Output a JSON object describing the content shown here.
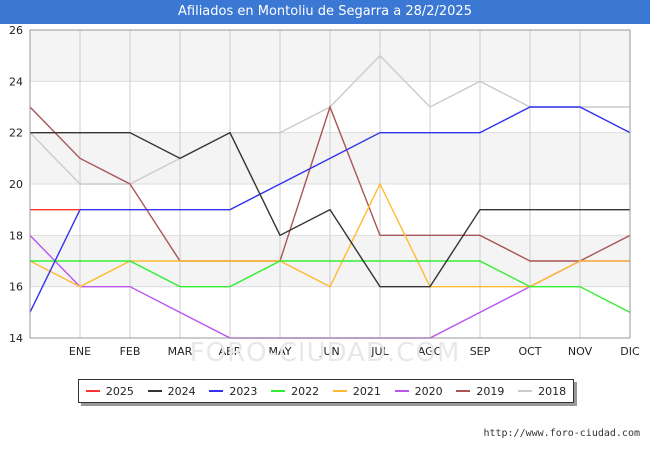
{
  "chart_data": {
    "type": "line",
    "title": "Afiliados en Montoliu de Segarra a 28/2/2025",
    "categories": [
      "",
      "ENE",
      "FEB",
      "MAR",
      "ABR",
      "MAY",
      "JUN",
      "JUL",
      "AGO",
      "SEP",
      "OCT",
      "NOV",
      "DIC"
    ],
    "ylim": [
      14,
      26
    ],
    "yticks": [
      14,
      16,
      18,
      20,
      22,
      24,
      26
    ],
    "series": [
      {
        "name": "2025",
        "color": "#ff3333",
        "values": [
          19,
          19,
          null,
          null,
          null,
          null,
          null,
          null,
          null,
          null,
          null,
          null,
          null
        ]
      },
      {
        "name": "2024",
        "color": "#333333",
        "values": [
          22,
          22,
          22,
          21,
          22,
          18,
          19,
          16,
          16,
          19,
          19,
          19,
          19
        ]
      },
      {
        "name": "2023",
        "color": "#3333ee",
        "values": [
          15,
          19,
          19,
          19,
          19,
          20,
          21,
          22,
          22,
          22,
          23,
          23,
          22
        ]
      },
      {
        "name": "2022",
        "color": "#33ee33",
        "values": [
          17,
          17,
          17,
          16,
          16,
          17,
          17,
          17,
          17,
          17,
          16,
          16,
          15
        ]
      },
      {
        "name": "2021",
        "color": "#ffbb33",
        "values": [
          17,
          16,
          17,
          17,
          17,
          17,
          16,
          20,
          16,
          16,
          16,
          17,
          17
        ]
      },
      {
        "name": "2020",
        "color": "#bb55ee",
        "values": [
          18,
          16,
          16,
          15,
          14,
          14,
          14,
          14,
          14,
          15,
          16,
          17,
          17
        ]
      },
      {
        "name": "2019",
        "color": "#aa5555",
        "values": [
          23,
          21,
          20,
          17,
          17,
          17,
          23,
          18,
          18,
          18,
          17,
          17,
          18
        ]
      },
      {
        "name": "2018",
        "color": "#cccccc",
        "values": [
          22,
          20,
          20,
          21,
          22,
          22,
          23,
          25,
          23,
          24,
          23,
          23,
          23
        ]
      }
    ],
    "grid": true,
    "legend_position": "bottom"
  },
  "watermark": "FORO-CIUDAD.COM",
  "source_url": "http://www.foro-ciudad.com"
}
